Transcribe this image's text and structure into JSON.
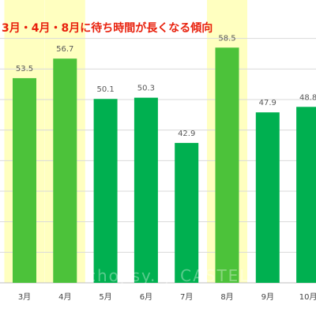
{
  "chart_data": {
    "type": "bar",
    "title": "3月・4月・8月に待ち時間が長くなる傾向",
    "categories": [
      "3月",
      "4月",
      "5月",
      "6月",
      "7月",
      "8月",
      "9月",
      "10月"
    ],
    "values": [
      53.5,
      56.7,
      50.1,
      50.3,
      42.9,
      58.5,
      47.9,
      48.8
    ],
    "value_labels": [
      "53.5",
      "56.7",
      "50.1",
      "50.3",
      "42.9",
      "58.5",
      "47.9",
      "48.8"
    ],
    "highlighted_categories": [
      "3月",
      "4月",
      "8月"
    ],
    "xlabel": "",
    "ylabel": "",
    "ylim": [
      20,
      65
    ],
    "grid": true,
    "legend": "none",
    "colors": {
      "bar": "#00b050",
      "bar_highlighted": "#4cc23a",
      "highlight_band": "#ffffc0",
      "gridline": "#d9d9d9",
      "title": "#e8200c"
    },
    "watermark": "chopsy.ly CASTEL"
  }
}
